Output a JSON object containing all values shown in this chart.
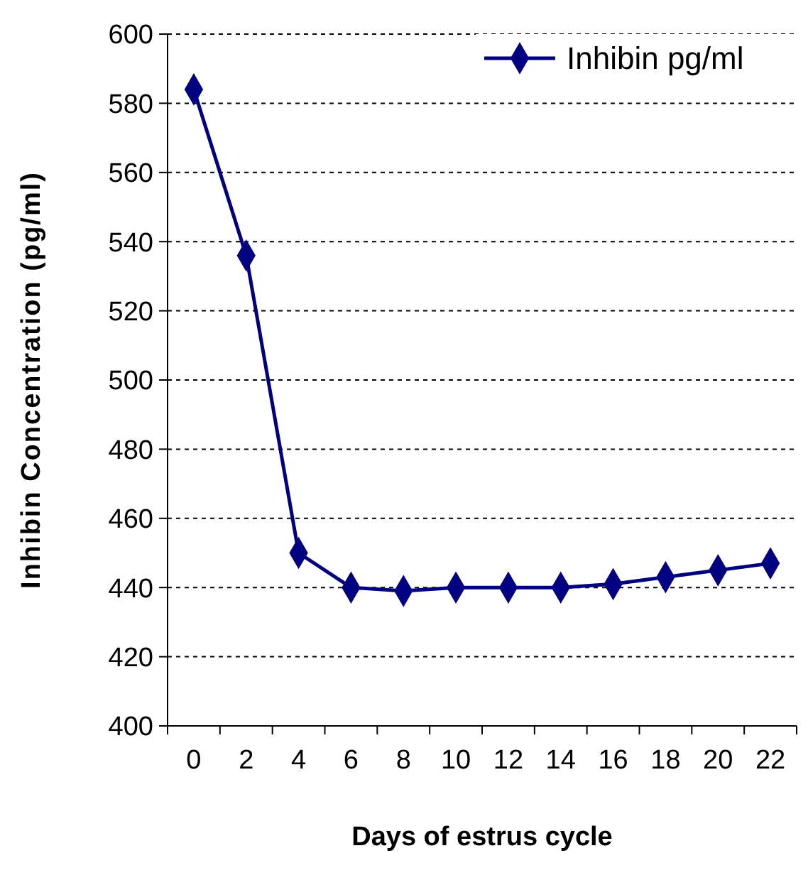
{
  "chart_data": {
    "type": "line",
    "xlabel": "Days of estrus cycle",
    "ylabel": "Inhibin Concentration (pg/ml)",
    "categories": [
      "0",
      "2",
      "4",
      "6",
      "8",
      "10",
      "12",
      "14",
      "16",
      "18",
      "20",
      "22"
    ],
    "series": [
      {
        "name": "Inhibin pg/ml",
        "color": "#000080",
        "values": [
          584,
          536,
          450,
          440,
          439,
          440,
          440,
          440,
          441,
          443,
          445,
          447
        ]
      }
    ],
    "ylim": [
      400,
      600
    ],
    "yticks": [
      400,
      420,
      440,
      460,
      480,
      500,
      520,
      540,
      560,
      580,
      600
    ],
    "grid": "y",
    "legend": "top right",
    "marker": "diamond",
    "line_style": "solid"
  }
}
